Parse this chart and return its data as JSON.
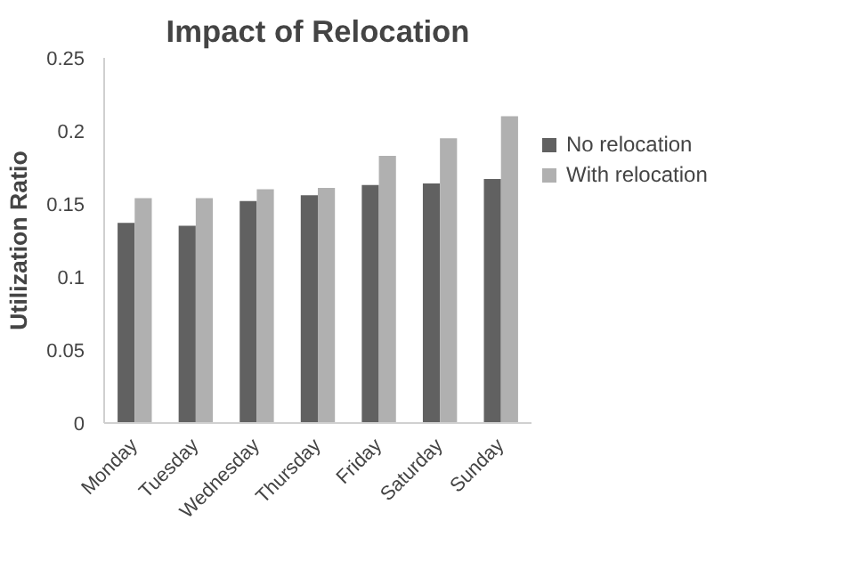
{
  "chart_data": {
    "type": "bar",
    "title": "Impact of Relocation",
    "ylabel": "Utilization Ratio",
    "categories": [
      "Monday",
      "Tuesday",
      "Wednesday",
      "Thursday",
      "Friday",
      "Saturday",
      "Sunday"
    ],
    "series": [
      {
        "name": "No relocation",
        "color": "#616161",
        "values": [
          0.137,
          0.135,
          0.152,
          0.156,
          0.163,
          0.164,
          0.167
        ]
      },
      {
        "name": "With relocation",
        "color": "#b0b0b0",
        "values": [
          0.154,
          0.154,
          0.16,
          0.161,
          0.183,
          0.195,
          0.21
        ]
      }
    ],
    "ylim": [
      0,
      0.25
    ],
    "yticks": [
      0,
      0.05,
      0.1,
      0.15,
      0.2,
      0.25
    ],
    "grid": false,
    "legend": "right"
  }
}
